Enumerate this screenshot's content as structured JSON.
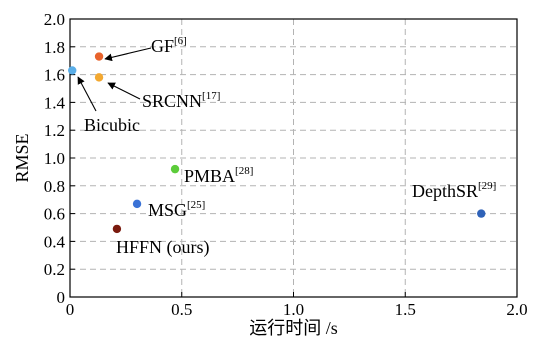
{
  "chart_data": {
    "type": "scatter",
    "title": "",
    "xlabel": "运行时间 /s",
    "ylabel": "RMSE",
    "xlim": [
      0,
      2.0
    ],
    "ylim": [
      0,
      2.0
    ],
    "xticks": [
      "0",
      "0.5",
      "1.0",
      "1.5",
      "2.0"
    ],
    "yticks": [
      "0",
      "0.2",
      "0.4",
      "0.6",
      "0.8",
      "1.0",
      "1.2",
      "1.4",
      "1.6",
      "1.8",
      "2.0"
    ],
    "grid": true,
    "points": [
      {
        "label": "GF",
        "ref": "[6]",
        "x": 0.13,
        "y": 1.73,
        "color": "#e8632c",
        "arrow": true
      },
      {
        "label": "Bicubic",
        "ref": "",
        "x": 0.01,
        "y": 1.63,
        "color": "#5aaee8",
        "arrow": true
      },
      {
        "label": "SRCNN",
        "ref": "[17]",
        "x": 0.13,
        "y": 1.58,
        "color": "#f3a830",
        "arrow": true
      },
      {
        "label": "PMBA",
        "ref": "[28]",
        "x": 0.47,
        "y": 0.92,
        "color": "#5ccc3a",
        "arrow": false
      },
      {
        "label": "MSG",
        "ref": "[25]",
        "x": 0.3,
        "y": 0.67,
        "color": "#3a72d6",
        "arrow": false
      },
      {
        "label": "HFFN (ours)",
        "ref": "",
        "x": 0.21,
        "y": 0.49,
        "color": "#7a1a0e",
        "arrow": false
      },
      {
        "label": "DepthSR",
        "ref": "[29]",
        "x": 1.84,
        "y": 0.6,
        "color": "#2f62b8",
        "arrow": false
      }
    ]
  }
}
